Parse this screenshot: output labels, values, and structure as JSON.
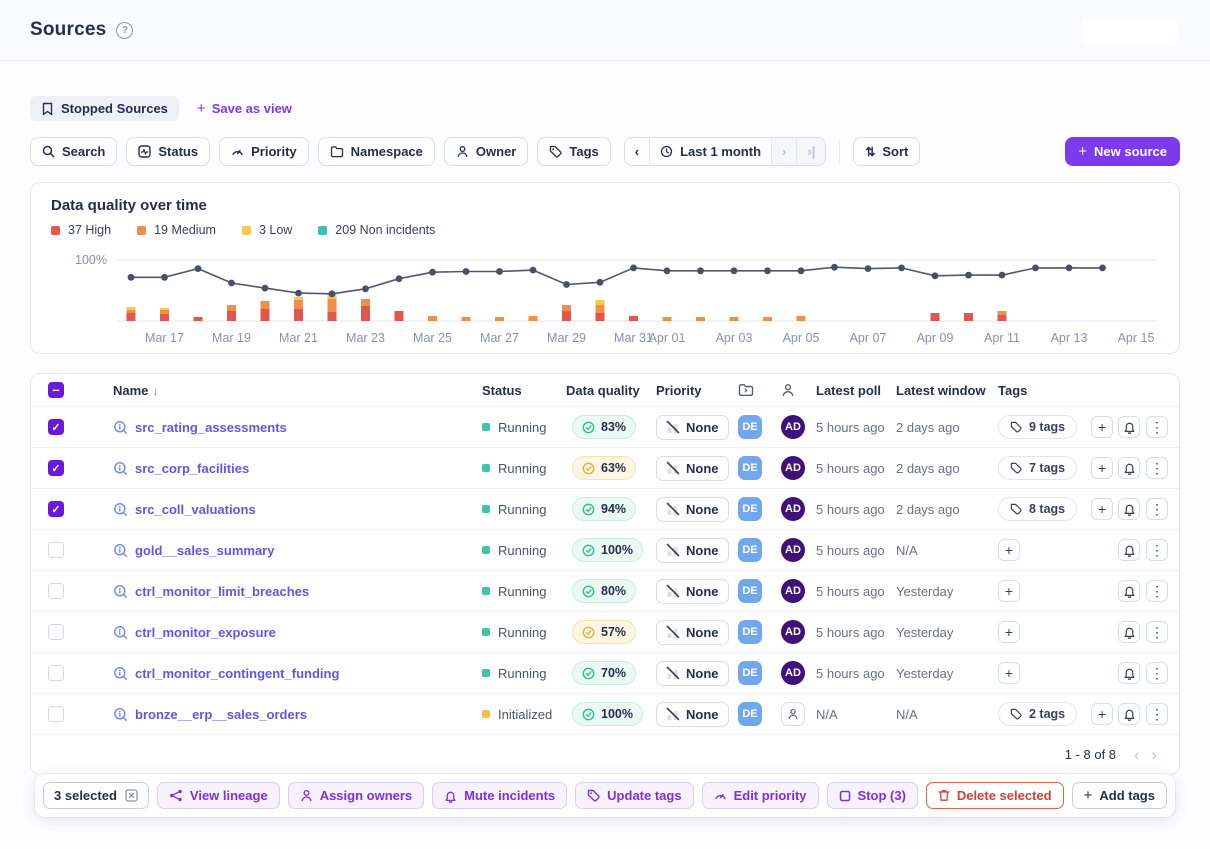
{
  "page": {
    "title": "Sources"
  },
  "icons": {
    "help": "?",
    "sort_desc": "↓",
    "plus": "+",
    "kebab": "⋮",
    "chevron_left": "‹",
    "chevron_right": "›",
    "chevron_last": "›|",
    "sort": "⇅"
  },
  "views": {
    "current": "Stopped Sources",
    "save_as_view": "Save as view"
  },
  "filters": {
    "search": "Search",
    "status": "Status",
    "priority": "Priority",
    "namespace": "Namespace",
    "owner": "Owner",
    "tags": "Tags",
    "date_range": "Last 1 month",
    "sort": "Sort",
    "new_source": "New source"
  },
  "chart": {
    "title": "Data quality over time",
    "y_axis_label": "100%",
    "legend": [
      {
        "label": "37 High",
        "color": "#e25a4d"
      },
      {
        "label": "19 Medium",
        "color": "#ef8e49"
      },
      {
        "label": "3 Low",
        "color": "#f2cb50"
      },
      {
        "label": "209 Non incidents",
        "color": "#3fc2b0"
      }
    ]
  },
  "chart_data": {
    "type": "composite line + stacked bar",
    "summary_counts": {
      "high": 37,
      "medium": 19,
      "low": 3,
      "non_incidents": 209
    },
    "x_labels": [
      "Mar 17",
      "Mar 19",
      "Mar 21",
      "Mar 23",
      "Mar 25",
      "Mar 27",
      "Mar 29",
      "Mar 31",
      "Apr 01",
      "Apr 03",
      "Apr 05",
      "Apr 07",
      "Apr 09",
      "Apr 11",
      "Apr 13",
      "Apr 15"
    ],
    "x_label_day_offsets": [
      1,
      3,
      5,
      7,
      9,
      11,
      13,
      15,
      16,
      18,
      20,
      22,
      24,
      26,
      28,
      30
    ],
    "line": {
      "name": "Data quality %",
      "color": "#52566f",
      "ylim": [
        90,
        100
      ],
      "values": [
        97.6,
        97.6,
        98.8,
        96.8,
        96.1,
        95.4,
        95.3,
        96.0,
        97.4,
        98.3,
        98.4,
        98.4,
        98.6,
        96.6,
        96.9,
        98.9,
        98.5,
        98.5,
        98.5,
        98.5,
        98.5,
        99.0,
        98.8,
        98.9,
        97.8,
        97.9,
        97.9,
        98.9,
        98.9,
        98.9
      ]
    },
    "bars": {
      "name": "Daily incidents (stacked, relative height)",
      "colors": {
        "high": "#e2574c",
        "medium": "#ef8f4a",
        "low": "#f2cb4e"
      },
      "values": [
        [
          8,
          3,
          3
        ],
        [
          7,
          4,
          2
        ],
        [
          4,
          0,
          0
        ],
        [
          10,
          6,
          0
        ],
        [
          12,
          8,
          0
        ],
        [
          12,
          9,
          3
        ],
        [
          9,
          13,
          5
        ],
        [
          15,
          7,
          0
        ],
        [
          10,
          0,
          0
        ],
        [
          0,
          5,
          0
        ],
        [
          0,
          4,
          0
        ],
        [
          0,
          4,
          0
        ],
        [
          0,
          5,
          0
        ],
        [
          10,
          6,
          0
        ],
        [
          8,
          8,
          5
        ],
        [
          5,
          0,
          0
        ],
        [
          0,
          4,
          0
        ],
        [
          0,
          4,
          0
        ],
        [
          0,
          4,
          0
        ],
        [
          0,
          4,
          0
        ],
        [
          0,
          5,
          0
        ],
        [
          0,
          0,
          0
        ],
        [
          0,
          0,
          0
        ],
        [
          0,
          0,
          0
        ],
        [
          8,
          0,
          0
        ],
        [
          8,
          0,
          0
        ],
        [
          6,
          4,
          0
        ],
        [
          0,
          0,
          0
        ],
        [
          0,
          0,
          0
        ],
        [
          0,
          0,
          0
        ]
      ]
    }
  },
  "table": {
    "columns": {
      "name": "Name",
      "status": "Status",
      "quality": "Data quality",
      "priority": "Priority",
      "latest_poll": "Latest poll",
      "latest_window": "Latest window",
      "tags": "Tags"
    },
    "rows": [
      {
        "name": "src_rating_assessments",
        "checked": true,
        "status": "Running",
        "status_type": "running",
        "quality": "83%",
        "quality_type": "good",
        "priority": "None",
        "owners": [
          "DE",
          "AD"
        ],
        "latest_poll": "5 hours ago",
        "latest_window": "2 days ago",
        "tags": "9 tags"
      },
      {
        "name": "src_corp_facilities",
        "checked": true,
        "status": "Running",
        "status_type": "running",
        "quality": "63%",
        "quality_type": "warn",
        "priority": "None",
        "owners": [
          "DE",
          "AD"
        ],
        "latest_poll": "5 hours ago",
        "latest_window": "2 days ago",
        "tags": "7 tags"
      },
      {
        "name": "src_coll_valuations",
        "checked": true,
        "status": "Running",
        "status_type": "running",
        "quality": "94%",
        "quality_type": "good",
        "priority": "None",
        "owners": [
          "DE",
          "AD"
        ],
        "latest_poll": "5 hours ago",
        "latest_window": "2 days ago",
        "tags": "8 tags"
      },
      {
        "name": "gold__sales_summary",
        "checked": false,
        "status": "Running",
        "status_type": "running",
        "quality": "100%",
        "quality_type": "good",
        "priority": "None",
        "owners": [
          "DE",
          "AD"
        ],
        "latest_poll": "5 hours ago",
        "latest_window": "N/A",
        "tags": null
      },
      {
        "name": "ctrl_monitor_limit_breaches",
        "checked": false,
        "status": "Running",
        "status_type": "running",
        "quality": "80%",
        "quality_type": "good",
        "priority": "None",
        "owners": [
          "DE",
          "AD"
        ],
        "latest_poll": "5 hours ago",
        "latest_window": "Yesterday",
        "tags": null
      },
      {
        "name": "ctrl_monitor_exposure",
        "checked": false,
        "status": "Running",
        "status_type": "running",
        "quality": "57%",
        "quality_type": "warn",
        "priority": "None",
        "owners": [
          "DE",
          "AD"
        ],
        "latest_poll": "5 hours ago",
        "latest_window": "Yesterday",
        "tags": null
      },
      {
        "name": "ctrl_monitor_contingent_funding",
        "checked": false,
        "status": "Running",
        "status_type": "running",
        "quality": "70%",
        "quality_type": "good",
        "priority": "None",
        "owners": [
          "DE",
          "AD"
        ],
        "latest_poll": "5 hours ago",
        "latest_window": "Yesterday",
        "tags": null
      },
      {
        "name": "bronze__erp__sales_orders",
        "checked": false,
        "status": "Initialized",
        "status_type": "init",
        "quality": "100%",
        "quality_type": "good",
        "priority": "None",
        "owners": [
          "DE",
          null
        ],
        "latest_poll": "N/A",
        "latest_window": "N/A",
        "tags": "2 tags"
      }
    ]
  },
  "pagination": {
    "label": "1 - 8 of 8"
  },
  "action_bar": {
    "selected_label": "3 selected",
    "buttons": [
      {
        "label": "View lineage"
      },
      {
        "label": "Assign owners"
      },
      {
        "label": "Mute incidents"
      },
      {
        "label": "Update tags"
      },
      {
        "label": "Edit priority"
      },
      {
        "label": "Stop (3)"
      },
      {
        "label": "Delete selected"
      },
      {
        "label": "Add tags"
      }
    ]
  }
}
